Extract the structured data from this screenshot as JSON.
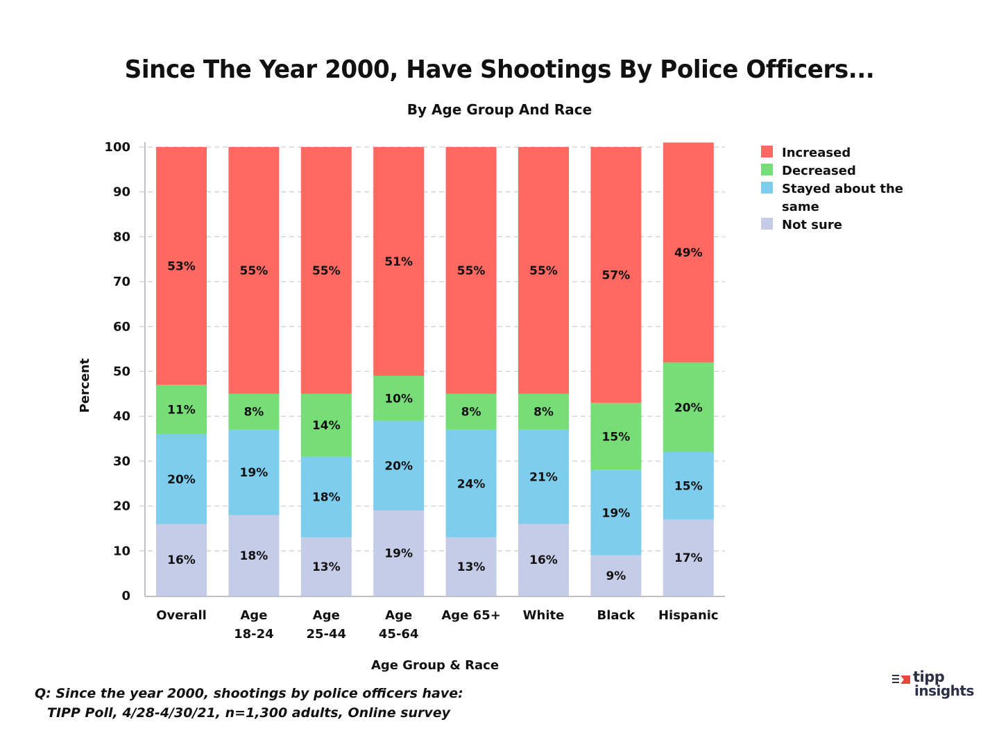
{
  "chart_data": {
    "type": "bar",
    "stacked": true,
    "title": "Since The Year 2000, Have Shootings By Police Officers...",
    "subtitle": "By Age Group And Race",
    "xlabel": "Age Group & Race",
    "ylabel": "Percent",
    "ylim": [
      0,
      100
    ],
    "yticks": [
      0,
      10,
      20,
      30,
      40,
      50,
      60,
      70,
      80,
      90,
      100
    ],
    "grid": true,
    "legend_position": "top-right",
    "categories": [
      [
        "Overall"
      ],
      [
        "Age",
        "18-24"
      ],
      [
        "Age",
        "25-44"
      ],
      [
        "Age",
        "45-64"
      ],
      [
        "Age 65+"
      ],
      [
        "White"
      ],
      [
        "Black"
      ],
      [
        "Hispanic"
      ]
    ],
    "series": [
      {
        "name": "Not sure",
        "color": "#c5cce8",
        "values": [
          16,
          18,
          13,
          19,
          13,
          16,
          9,
          17
        ]
      },
      {
        "name": "Stayed about the same",
        "color": "#7ecdec",
        "values": [
          20,
          19,
          18,
          20,
          24,
          21,
          19,
          15
        ]
      },
      {
        "name": "Decreased",
        "color": "#77dd77",
        "values": [
          11,
          8,
          14,
          10,
          8,
          8,
          15,
          20
        ]
      },
      {
        "name": "Increased",
        "color": "#ff6961",
        "values": [
          53,
          55,
          55,
          51,
          55,
          55,
          57,
          49
        ]
      }
    ],
    "legend_order": [
      "Increased",
      "Decreased",
      "Stayed about the same",
      "Not sure"
    ],
    "legend_lines": {
      "Increased": [
        "Increased"
      ],
      "Decreased": [
        "Decreased"
      ],
      "Stayed about the same": [
        "Stayed about the",
        "same"
      ],
      "Not sure": [
        "Not sure"
      ]
    },
    "label_suffix": "%"
  },
  "footnote": {
    "line1": "Q:  Since the year 2000, shootings by police officers have:",
    "line2": "TIPP Poll, 4/28-4/30/21, n=1,300 adults, Online survey"
  },
  "logo": {
    "word1": "tipp",
    "word2": "insights",
    "accent_color": "#e8453c"
  }
}
